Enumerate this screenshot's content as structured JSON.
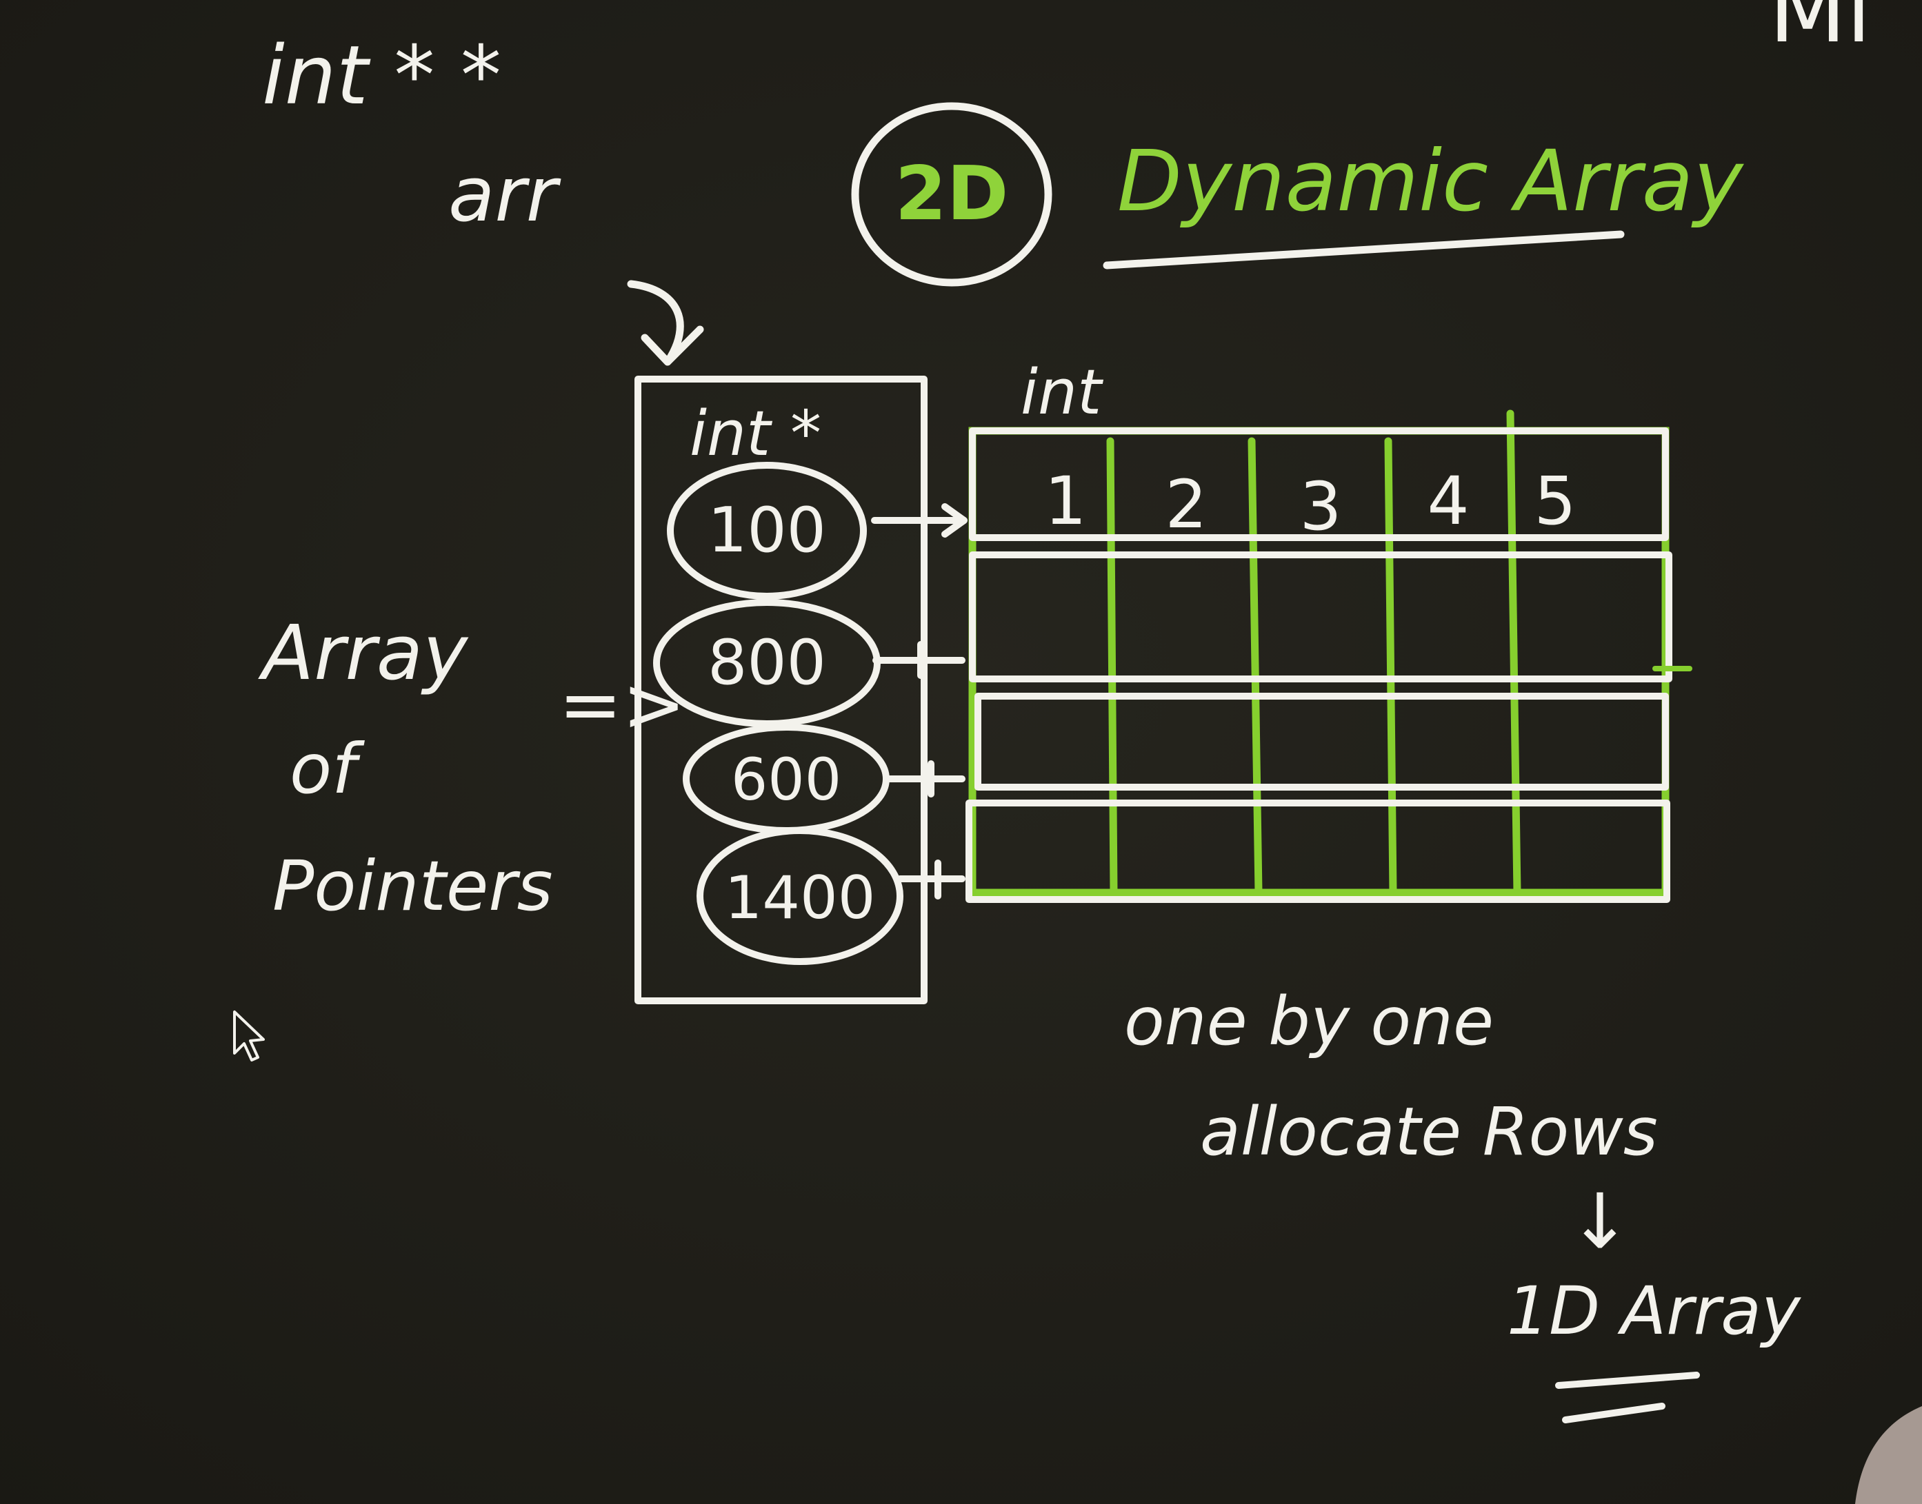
{
  "top_left": {
    "type_decl": "int * *",
    "var_name": "arr"
  },
  "heading": {
    "badge": "2D",
    "title": "Dynamic Array"
  },
  "top_right_fragment": "Mi",
  "pointer_box": {
    "type_label": "int *",
    "cells": [
      "100",
      "800",
      "600",
      "1400"
    ]
  },
  "grid": {
    "type_label": "int",
    "first_row": [
      "1",
      "2",
      "3",
      "4",
      "5"
    ],
    "rows": 4,
    "cols": 5
  },
  "side_label": {
    "line1": "Array",
    "line2": "of",
    "line3": "Pointers",
    "arrow": "=>"
  },
  "note": {
    "line1": "one by one",
    "line2": "allocate Rows",
    "arrow": "↓",
    "line3": "1D Array"
  },
  "colors": {
    "background": "#1f1e18",
    "chalk": "#f3f2ec",
    "accent": "#8fd33a"
  }
}
